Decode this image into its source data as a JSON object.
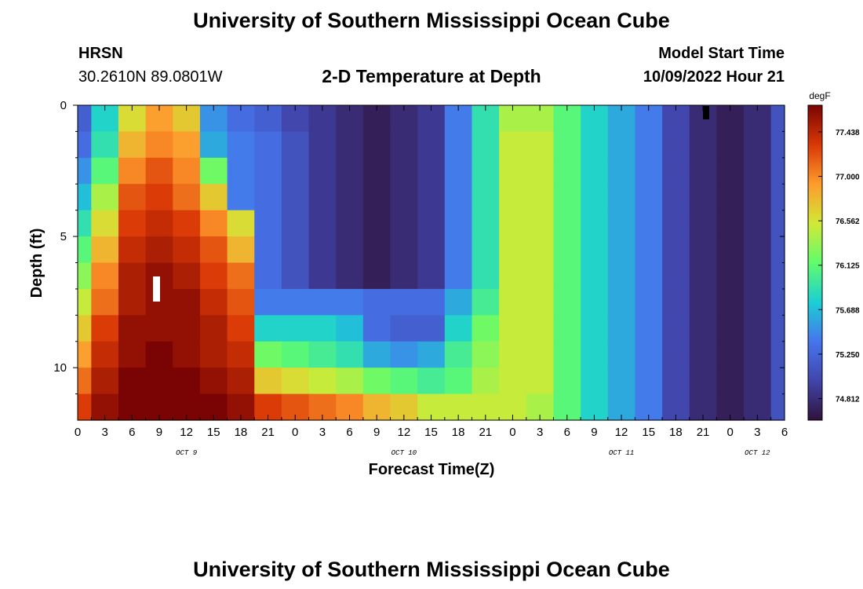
{
  "header": {
    "title": "University of Southern Mississippi Ocean Cube",
    "station": "HRSN",
    "coordinates": "30.2610N  89.0801W",
    "subtitle": "2-D Temperature at Depth",
    "model_start_label": "Model Start Time",
    "model_start_value": "10/09/2022 Hour 21"
  },
  "footer": {
    "title": "University of Southern Mississippi Ocean Cube"
  },
  "chart_data": {
    "type": "heatmap",
    "title": "2-D Temperature at Depth",
    "xlabel": "Forecast Time(Z)",
    "ylabel": "Depth (ft)",
    "x_range_hours": [
      0,
      78
    ],
    "y_range_ft": [
      0,
      12
    ],
    "x_tick_labels": [
      "0",
      "3",
      "6",
      "9",
      "12",
      "15",
      "18",
      "21",
      "0",
      "3",
      "6",
      "9",
      "12",
      "15",
      "18",
      "21",
      "0",
      "3",
      "6",
      "9",
      "12",
      "15",
      "18",
      "21",
      "0",
      "3",
      "6"
    ],
    "y_tick_labels": [
      "0",
      "5",
      "10"
    ],
    "y_tick_values": [
      0,
      5,
      10
    ],
    "day_labels": [
      {
        "label": "OCT 9",
        "hour": 12
      },
      {
        "label": "OCT 10",
        "hour": 36
      },
      {
        "label": "OCT 11",
        "hour": 60
      },
      {
        "label": "OCT 12",
        "hour": 75
      }
    ],
    "colorbar": {
      "unit": "degF",
      "range": [
        74.6,
        77.7
      ],
      "tick_labels": [
        "77.438",
        "77.000",
        "76.562",
        "76.125",
        "75.688",
        "75.250",
        "74.812"
      ],
      "tick_values": [
        77.438,
        77.0,
        76.562,
        76.125,
        75.688,
        75.25,
        74.812
      ]
    },
    "depth_levels_ft": [
      0.5,
      1.5,
      2.5,
      3.5,
      4.5,
      5.5,
      6.5,
      7.5,
      8.5,
      9.5,
      10.5,
      11.5
    ],
    "time_hours": [
      0,
      3,
      6,
      9,
      12,
      15,
      18,
      21,
      24,
      27,
      30,
      33,
      36,
      39,
      42,
      45,
      48,
      51,
      54,
      57,
      60,
      63,
      66,
      69,
      72,
      75,
      78
    ],
    "temperature_degF": [
      [
        75.2,
        75.8,
        76.6,
        76.9,
        76.7,
        75.5,
        75.3,
        75.2,
        75.0,
        74.9,
        74.8,
        74.7,
        74.8,
        74.9,
        75.4,
        75.9,
        76.4,
        76.4,
        76.1,
        75.8,
        75.6,
        75.4,
        75.0,
        74.8,
        74.7,
        74.8,
        75.1
      ],
      [
        75.3,
        75.9,
        76.8,
        77.0,
        76.9,
        75.6,
        75.4,
        75.3,
        75.1,
        74.9,
        74.8,
        74.7,
        74.8,
        74.9,
        75.4,
        75.9,
        76.5,
        76.5,
        76.1,
        75.8,
        75.6,
        75.4,
        75.0,
        74.8,
        74.7,
        74.8,
        75.1
      ],
      [
        75.5,
        76.1,
        77.0,
        77.2,
        77.0,
        76.2,
        75.4,
        75.3,
        75.1,
        74.9,
        74.8,
        74.7,
        74.8,
        74.9,
        75.4,
        75.9,
        76.5,
        76.5,
        76.1,
        75.8,
        75.6,
        75.4,
        75.0,
        74.8,
        74.7,
        74.8,
        75.1
      ],
      [
        75.7,
        76.4,
        77.2,
        77.3,
        77.1,
        76.7,
        75.4,
        75.3,
        75.1,
        74.9,
        74.8,
        74.7,
        74.8,
        74.9,
        75.4,
        75.9,
        76.5,
        76.5,
        76.1,
        75.8,
        75.6,
        75.4,
        75.0,
        74.8,
        74.7,
        74.8,
        75.1
      ],
      [
        75.9,
        76.6,
        77.3,
        77.4,
        77.3,
        77.0,
        76.6,
        75.3,
        75.1,
        74.9,
        74.8,
        74.7,
        74.8,
        74.9,
        75.4,
        75.9,
        76.5,
        76.5,
        76.1,
        75.8,
        75.6,
        75.4,
        75.0,
        74.8,
        74.7,
        74.8,
        75.1
      ],
      [
        76.1,
        76.8,
        77.4,
        77.5,
        77.4,
        77.2,
        76.8,
        75.3,
        75.1,
        74.9,
        74.8,
        74.7,
        74.8,
        74.9,
        75.4,
        75.9,
        76.5,
        76.5,
        76.1,
        75.8,
        75.6,
        75.4,
        75.0,
        74.8,
        74.7,
        74.8,
        75.1
      ],
      [
        76.3,
        77.0,
        77.5,
        77.6,
        77.5,
        77.3,
        77.1,
        75.3,
        75.1,
        74.9,
        74.8,
        74.7,
        74.8,
        74.9,
        75.4,
        75.9,
        76.5,
        76.5,
        76.1,
        75.8,
        75.6,
        75.4,
        75.0,
        74.8,
        74.7,
        74.8,
        75.1
      ],
      [
        76.5,
        77.1,
        77.5,
        77.6,
        77.6,
        77.4,
        77.2,
        75.4,
        75.4,
        75.4,
        75.4,
        75.3,
        75.3,
        75.3,
        75.6,
        76.0,
        76.5,
        76.5,
        76.1,
        75.8,
        75.6,
        75.4,
        75.0,
        74.8,
        74.7,
        74.8,
        75.1
      ],
      [
        76.7,
        77.3,
        77.6,
        77.6,
        77.6,
        77.5,
        77.3,
        75.8,
        75.8,
        75.8,
        75.7,
        75.3,
        75.2,
        75.2,
        75.8,
        76.2,
        76.5,
        76.5,
        76.1,
        75.8,
        75.6,
        75.4,
        75.0,
        74.8,
        74.7,
        74.8,
        75.1
      ],
      [
        76.9,
        77.4,
        77.6,
        77.7,
        77.6,
        77.5,
        77.4,
        76.2,
        76.1,
        76.0,
        75.9,
        75.6,
        75.5,
        75.6,
        76.0,
        76.3,
        76.5,
        76.5,
        76.1,
        75.8,
        75.6,
        75.4,
        75.0,
        74.8,
        74.7,
        74.8,
        75.1
      ],
      [
        77.1,
        77.5,
        77.7,
        77.7,
        77.7,
        77.6,
        77.5,
        76.7,
        76.6,
        76.5,
        76.4,
        76.2,
        76.1,
        76.0,
        76.1,
        76.4,
        76.5,
        76.5,
        76.1,
        75.8,
        75.6,
        75.4,
        75.0,
        74.8,
        74.7,
        74.8,
        75.1
      ],
      [
        77.3,
        77.6,
        77.7,
        77.7,
        77.7,
        77.7,
        77.6,
        77.3,
        77.2,
        77.1,
        77.0,
        76.8,
        76.7,
        76.5,
        76.5,
        76.5,
        76.5,
        76.4,
        76.1,
        75.8,
        75.6,
        75.4,
        75.0,
        74.8,
        74.7,
        74.8,
        75.1
      ]
    ]
  }
}
